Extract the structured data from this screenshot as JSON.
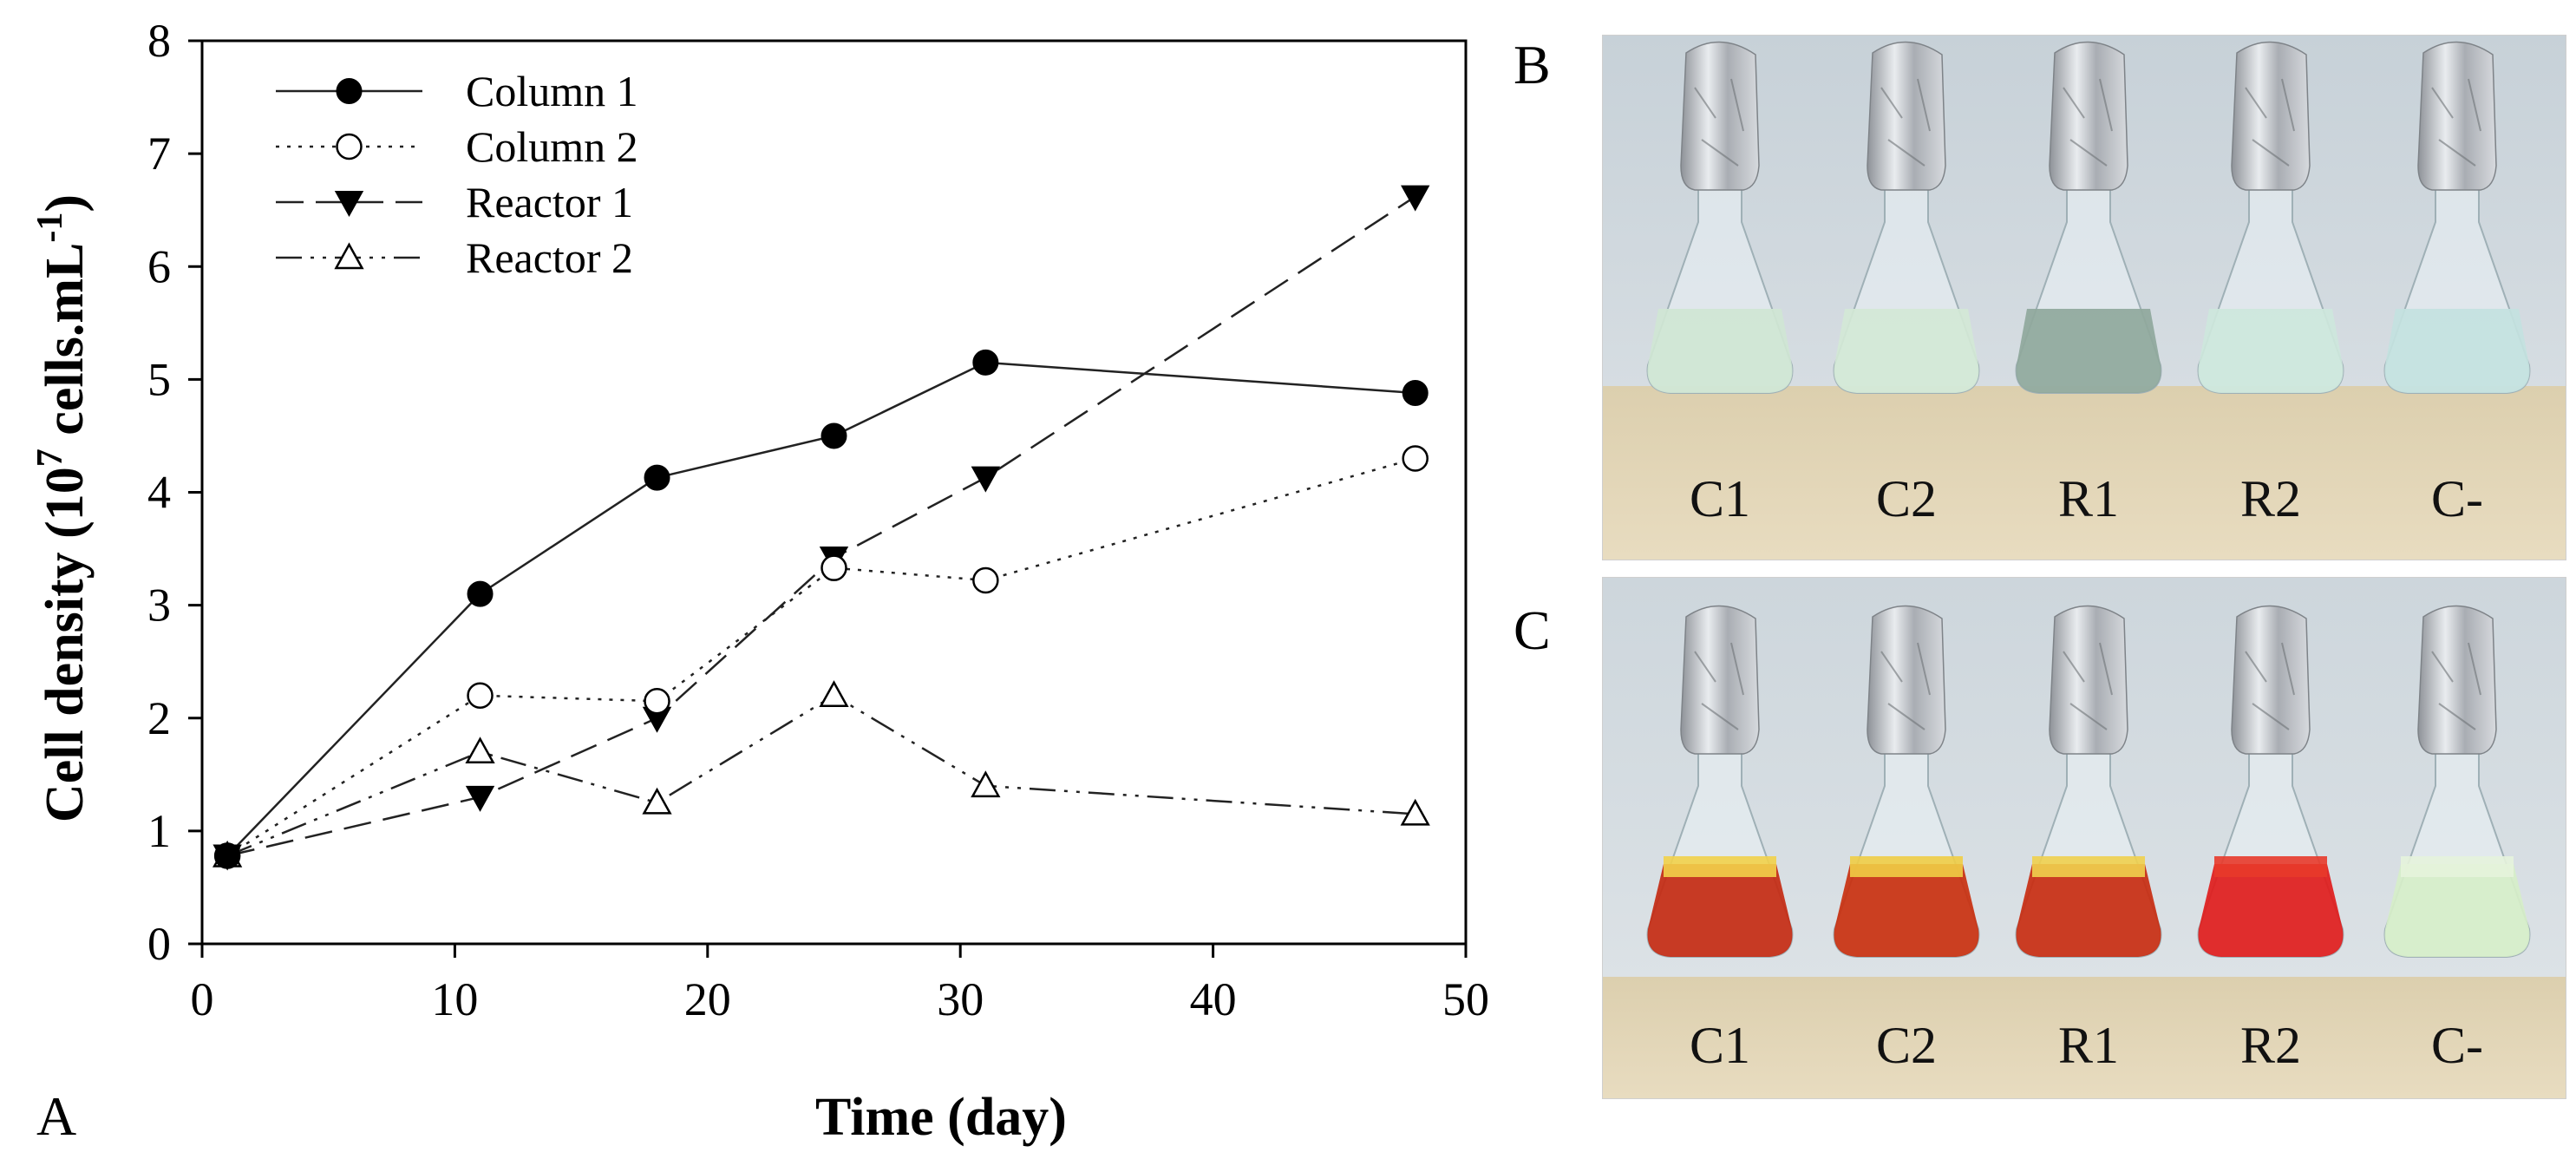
{
  "panels": {
    "chart_letter": "A",
    "photo_b_letter": "B",
    "photo_c_letter": "C"
  },
  "chart_data": {
    "type": "line",
    "title": "",
    "xlabel": "Time (day)",
    "ylabel_main": "Cell density (10",
    "ylabel_exp": "7",
    "ylabel_units": " cells.mL",
    "ylabel_units_exp": "-1",
    "ylabel_close": ")",
    "xlim": [
      0,
      50
    ],
    "ylim": [
      0,
      8
    ],
    "xticks": [
      0,
      10,
      20,
      30,
      40,
      50
    ],
    "yticks": [
      0,
      1,
      2,
      3,
      4,
      5,
      6,
      7,
      8
    ],
    "legend_position": "top-left",
    "series": [
      {
        "name": "Column 1",
        "marker": "filled-circle",
        "line": "solid",
        "x": [
          1,
          11,
          18,
          25,
          31,
          48
        ],
        "y": [
          0.78,
          3.1,
          4.13,
          4.5,
          5.15,
          4.88
        ]
      },
      {
        "name": "Column 2",
        "marker": "open-circle",
        "line": "dotted",
        "x": [
          1,
          11,
          18,
          25,
          31,
          48
        ],
        "y": [
          0.78,
          2.2,
          2.15,
          3.33,
          3.22,
          4.3
        ]
      },
      {
        "name": "Reactor 1",
        "marker": "filled-triangle-down",
        "line": "dashed",
        "x": [
          1,
          11,
          18,
          25,
          31,
          48
        ],
        "y": [
          0.78,
          1.3,
          2.0,
          3.42,
          4.13,
          6.62
        ]
      },
      {
        "name": "Reactor 2",
        "marker": "open-triangle-up",
        "line": "dash-dot-dot",
        "x": [
          1,
          11,
          18,
          25,
          31,
          48
        ],
        "y": [
          0.78,
          1.7,
          1.25,
          2.2,
          1.4,
          1.15
        ]
      }
    ]
  },
  "photo_b": {
    "description_colors": {
      "wall": "#c9d3da",
      "bench": "#d9c9a4"
    },
    "flasks": [
      {
        "label": "C1",
        "liquid": "#cfe6d4"
      },
      {
        "label": "C2",
        "liquid": "#d2e8d6"
      },
      {
        "label": "R1",
        "liquid": "#8fa89c"
      },
      {
        "label": "R2",
        "liquid": "#cde7dc"
      },
      {
        "label": "C-",
        "liquid": "#c3e2df"
      }
    ]
  },
  "photo_c": {
    "description_colors": {
      "wall": "#cfd8de",
      "bench": "#d9c9a4"
    },
    "flasks": [
      {
        "label": "C1",
        "liquid": "#c42a12",
        "top": "#f2d24a"
      },
      {
        "label": "C2",
        "liquid": "#c9300f",
        "top": "#f0cd45"
      },
      {
        "label": "R1",
        "liquid": "#c82c11",
        "top": "#efd04e"
      },
      {
        "label": "R2",
        "liquid": "#e01c1c",
        "top": "#e83a2a"
      },
      {
        "label": "C-",
        "liquid": "#d6eec9",
        "top": "#e6f3dc"
      }
    ]
  }
}
